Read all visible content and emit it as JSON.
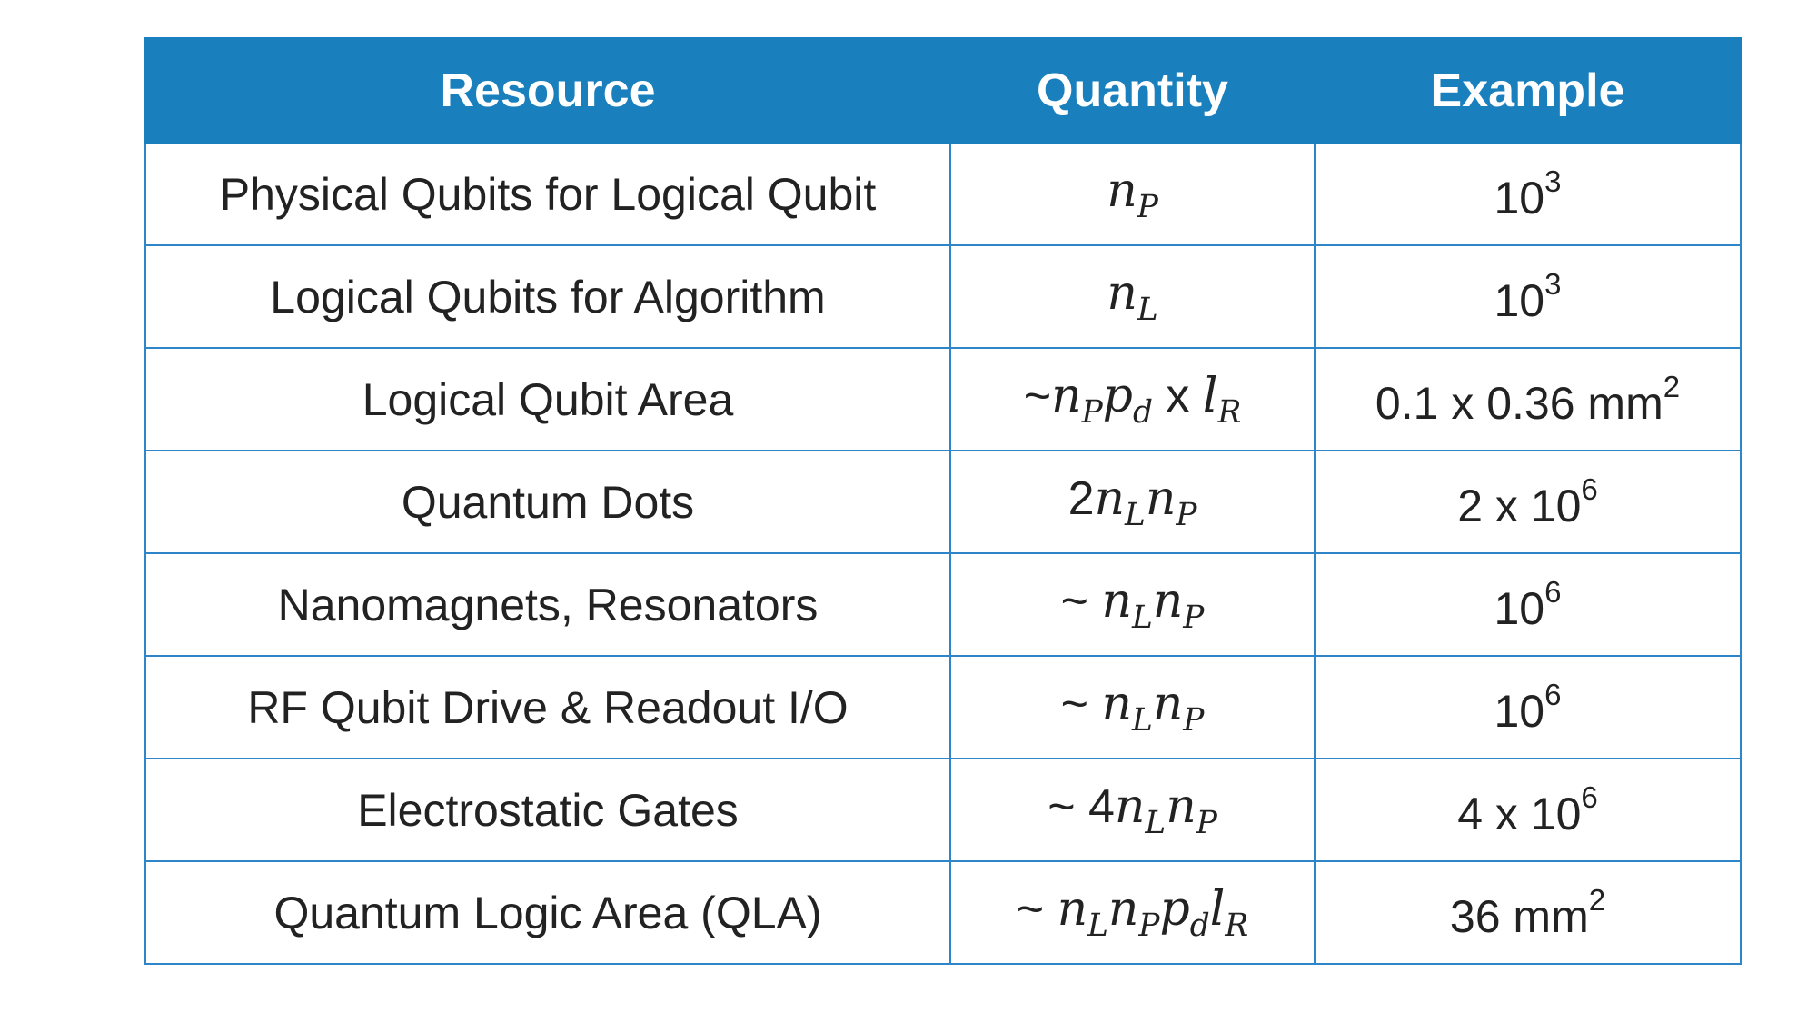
{
  "table": {
    "headers": {
      "resource": "Resource",
      "quantity": "Quantity",
      "example": "Example"
    },
    "rows": [
      {
        "resource": "Physical Qubits for Logical Qubit",
        "quantity": {
          "prefix": "",
          "n1": "n",
          "s1": "P"
        },
        "example": {
          "base": "10",
          "exp": "3"
        }
      },
      {
        "resource": "Logical Qubits for Algorithm",
        "quantity": {
          "prefix": "",
          "n1": "n",
          "s1": "L"
        },
        "example": {
          "base": "10",
          "exp": "3"
        }
      },
      {
        "resource": "Logical Qubit Area",
        "quantity": {
          "prefix": "~",
          "n1": "n",
          "s1": "P",
          "n2": "p",
          "s2": "d",
          "mid": " x ",
          "n3": "l",
          "s3": "R"
        },
        "example": {
          "base": "0.1 x 0.36 mm",
          "exp": "2"
        }
      },
      {
        "resource": "Quantum Dots",
        "quantity": {
          "prefix": "2",
          "n1": "n",
          "s1": "L",
          "n2": "n",
          "s2": "P"
        },
        "example": {
          "base": "2 x 10",
          "exp": "6"
        }
      },
      {
        "resource": "Nanomagnets, Resonators",
        "quantity": {
          "prefix": "~ ",
          "n1": "n",
          "s1": "L",
          "n2": "n",
          "s2": "P"
        },
        "example": {
          "base": "10",
          "exp": "6"
        }
      },
      {
        "resource": "RF Qubit Drive & Readout I/O",
        "quantity": {
          "prefix": "~ ",
          "n1": "n",
          "s1": "L",
          "n2": "n",
          "s2": "P"
        },
        "example": {
          "base": "10",
          "exp": "6"
        }
      },
      {
        "resource": "Electrostatic Gates",
        "quantity": {
          "prefix": "~ 4",
          "n1": "n",
          "s1": "L",
          "n2": "n",
          "s2": "P"
        },
        "example": {
          "base": "4 x 10",
          "exp": "6"
        }
      },
      {
        "resource": "Quantum Logic Area (QLA)",
        "quantity": {
          "prefix": "~ ",
          "n1": "n",
          "s1": "L",
          "n2": "n",
          "s2": "P",
          "n3": "p",
          "s3": "d",
          "n4": "l",
          "s4": "R"
        },
        "example": {
          "base": "36 mm",
          "exp": "2"
        }
      }
    ]
  },
  "colors": {
    "header_bg": "#1a7fbd",
    "header_text": "#ffffff",
    "border": "#2e86c9",
    "body_text": "#222222"
  }
}
